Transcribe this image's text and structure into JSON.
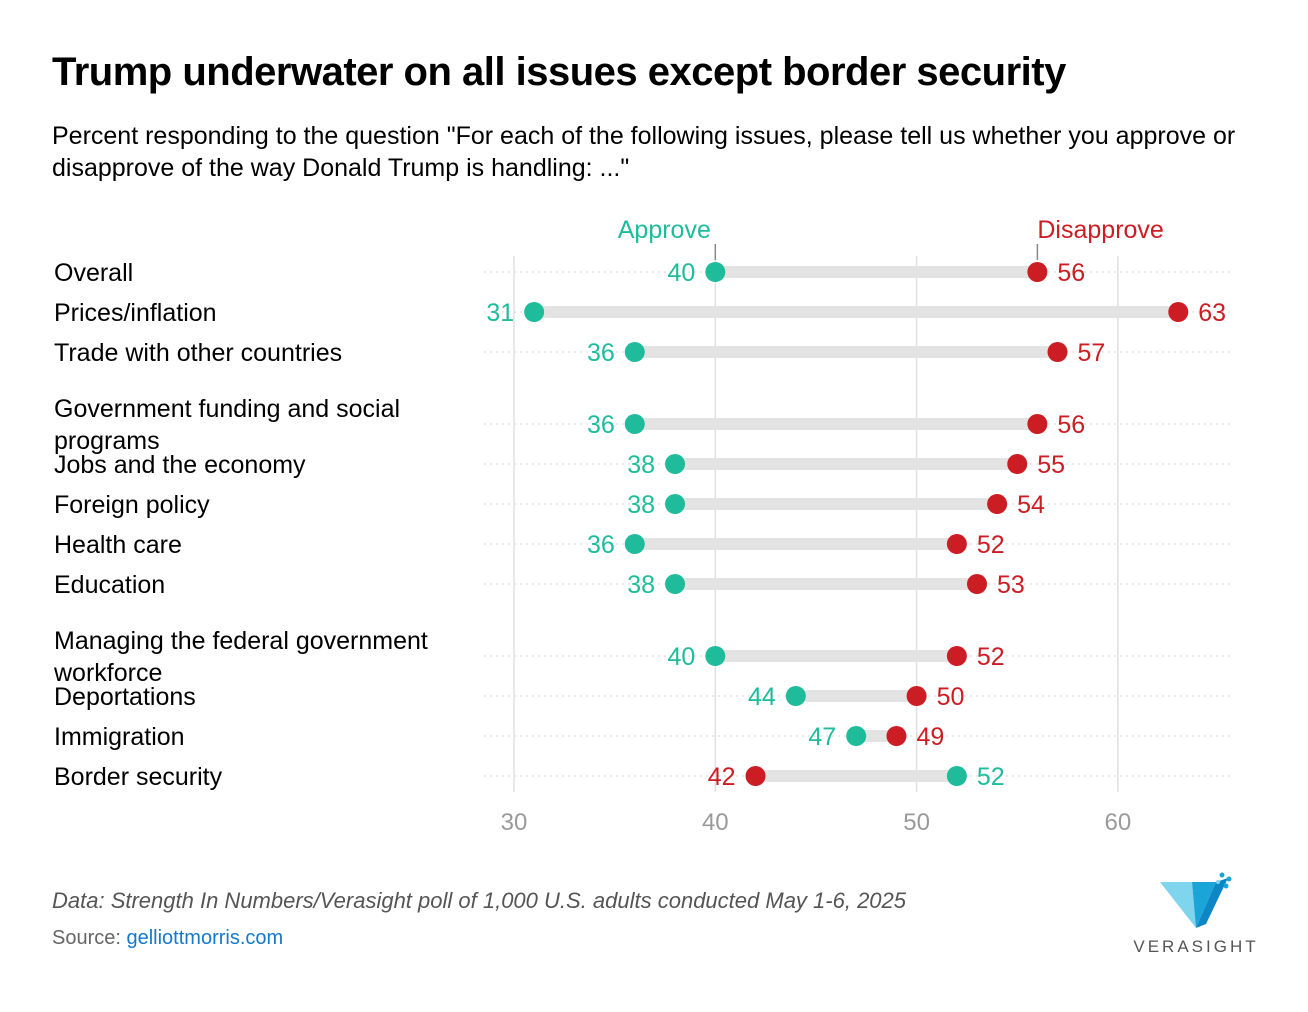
{
  "title": "Trump underwater on all issues except border security",
  "subtitle": "Percent responding to the question \"For each of the following issues, please tell us whether you approve or disapprove of the way Donald Trump is handling: ...\"",
  "note": "Data: Strength In Numbers/Verasight poll of 1,000 U.S. adults conducted May 1-6, 2025",
  "source": {
    "label": "Source: ",
    "link": "gelliottmorris.com"
  },
  "logo": {
    "text": "VERASIGHT",
    "icon": "verasight-v-logo-icon"
  },
  "colors": {
    "approve": "#1fbc9c",
    "disapprove": "#cb1d23",
    "bar": "#e3e3e3",
    "grid": "#e0e0e0",
    "axis_text": "#9a9a9a"
  },
  "chart_data": {
    "type": "dot",
    "xlim": [
      30,
      63
    ],
    "x_ticks": [
      30,
      40,
      50,
      60
    ],
    "grid": true,
    "series": [
      {
        "name": "Approve",
        "color": "#1fbc9c",
        "values": [
          40,
          31,
          36,
          36,
          38,
          38,
          36,
          38,
          40,
          44,
          47,
          52
        ]
      },
      {
        "name": "Disapprove",
        "color": "#cb1d23",
        "values": [
          56,
          63,
          57,
          56,
          55,
          54,
          52,
          53,
          52,
          50,
          49,
          42
        ]
      }
    ],
    "categories": [
      [
        "Overall"
      ],
      [
        "Prices/inflation"
      ],
      [
        "Trade with other countries"
      ],
      [
        "Government funding and social",
        "programs"
      ],
      [
        "Jobs and the economy"
      ],
      [
        "Foreign policy"
      ],
      [
        "Health care"
      ],
      [
        "Education"
      ],
      [
        "Managing the federal government",
        "workforce"
      ],
      [
        "Deportations"
      ],
      [
        "Immigration"
      ],
      [
        "Border security"
      ]
    ]
  }
}
